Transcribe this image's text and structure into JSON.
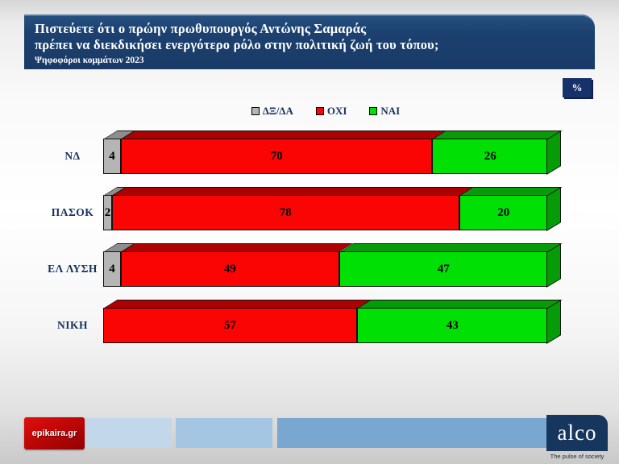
{
  "header": {
    "line1": "Πιστεύετε ότι ο πρώην πρωθυπουργός Αντώνης Σαμαράς",
    "line2": "πρέπει να διεκδικήσει ενεργότερο ρόλο στην πολιτική ζωή του τόπου;",
    "line3": "Ψηφοφόροι κομμάτων 2023"
  },
  "percent_badge": "%",
  "chart_data": {
    "type": "bar",
    "orientation": "horizontal",
    "stacked": true,
    "effect_3d": true,
    "title": "Πιστεύετε ότι ο πρώην πρωθυπουργός Αντώνης Σαμαράς πρέπει να διεκδικήσει ενεργότερο ρόλο στην πολιτική ζωή του τόπου;",
    "subtitle": "Ψηφοφόροι κομμάτων 2023",
    "unit": "%",
    "xlim": [
      0,
      100
    ],
    "grid": false,
    "legend_position": "top-center",
    "categories": [
      "ΝΔ",
      "ΠΑΣΟΚ",
      "ΕΛ ΛΥΣΗ",
      "ΝΙΚΗ"
    ],
    "series": [
      {
        "name": "ΔΞ/ΔΑ",
        "color": "#b5b5b5",
        "shade_color": "#8e8e8e",
        "values": [
          4,
          2,
          4,
          0
        ]
      },
      {
        "name": "ΟΧΙ",
        "color": "#fb0404",
        "shade_color": "#ad0202",
        "values": [
          70,
          78,
          49,
          57
        ]
      },
      {
        "name": "ΝΑΙ",
        "color": "#00e004",
        "shade_color": "#089b08",
        "values": [
          26,
          20,
          47,
          43
        ]
      }
    ]
  },
  "footer": {
    "epikaira_label": "epikaira.gr",
    "alco_label": "alco",
    "alco_tagline": "The pulse of society",
    "strip_colors": [
      "#c3d7ea",
      "#a4c6e2",
      "#79a7cf"
    ]
  },
  "colors": {
    "header_bg": "#1c4170",
    "badge_bg": "#17316b",
    "text_navy": "#16305c",
    "alco_bg": "#16365e",
    "epikaira_red": "#c00606"
  }
}
